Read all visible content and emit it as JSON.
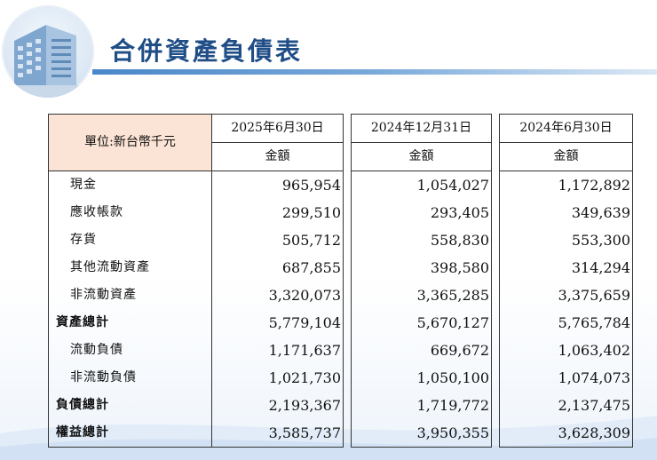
{
  "title": "合併資產負債表",
  "table": {
    "unit_label": "單位:新台幣千元",
    "columns": [
      {
        "date": "2025年6月30日",
        "sub": "金額"
      },
      {
        "date": "2024年12月31日",
        "sub": "金額"
      },
      {
        "date": "2024年6月30日",
        "sub": "金額"
      }
    ],
    "rows": [
      {
        "label": "現金",
        "total": false,
        "values": [
          "965,954",
          "1,054,027",
          "1,172,892"
        ]
      },
      {
        "label": "應收帳款",
        "total": false,
        "values": [
          "299,510",
          "293,405",
          "349,639"
        ]
      },
      {
        "label": "存貨",
        "total": false,
        "values": [
          "505,712",
          "558,830",
          "553,300"
        ]
      },
      {
        "label": "其他流動資產",
        "total": false,
        "values": [
          "687,855",
          "398,580",
          "314,294"
        ]
      },
      {
        "label": "非流動資產",
        "total": false,
        "values": [
          "3,320,073",
          "3,365,285",
          "3,375,659"
        ]
      },
      {
        "label": "資產總計",
        "total": true,
        "values": [
          "5,779,104",
          "5,670,127",
          "5,765,784"
        ]
      },
      {
        "label": "流動負債",
        "total": false,
        "values": [
          "1,171,637",
          "669,672",
          "1,063,402"
        ]
      },
      {
        "label": "非流動負債",
        "total": false,
        "values": [
          "1,021,730",
          "1,050,100",
          "1,074,073"
        ]
      },
      {
        "label": "負債總計",
        "total": true,
        "values": [
          "2,193,367",
          "1,719,772",
          "2,137,475"
        ]
      },
      {
        "label": "權益總計",
        "total": true,
        "values": [
          "3,585,737",
          "3,950,355",
          "3,628,309"
        ]
      }
    ]
  }
}
